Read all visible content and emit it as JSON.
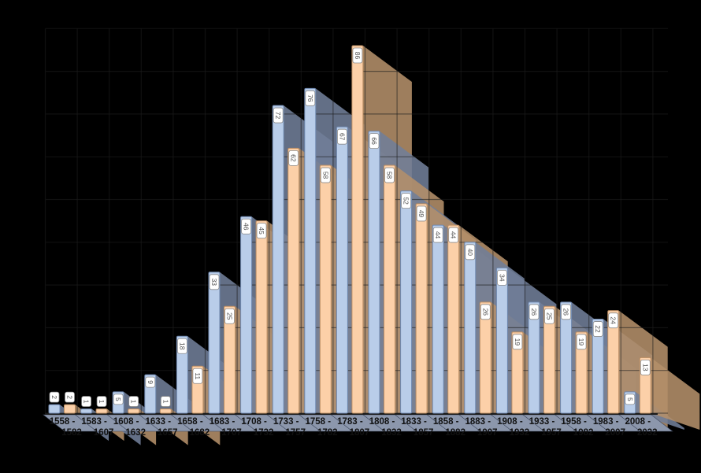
{
  "page": {
    "background": "#000000",
    "description": "3D paired bar chart, no title, no legend, value labels rotated 90 degrees on bar tops"
  },
  "chart_data": {
    "type": "bar",
    "style": "3d-extruded",
    "title": "",
    "xlabel": "",
    "ylabel": "",
    "legend": "none",
    "grid": "on",
    "ylim": [
      0,
      90
    ],
    "grid_step": 10,
    "categories": [
      "1558 - 1582",
      "1583 - 1607",
      "1608 - 1632",
      "1633 - 1657",
      "1658 - 1682",
      "1683 - 1707",
      "1708 - 1732",
      "1733 - 1757",
      "1758 - 1782",
      "1783 - 1807",
      "1808 - 1832",
      "1833 - 1857",
      "1858 - 1882",
      "1883 - 1907",
      "1908 - 1932",
      "1933 - 1957",
      "1958 - 1982",
      "1983 - 2007",
      "2008 - 2032"
    ],
    "series": [
      {
        "name": "blue-series",
        "color": "#b9cde9",
        "border_color": "#6e87ae",
        "shadow_color": "#717e99",
        "values": [
          2,
          1,
          5,
          9,
          18,
          33,
          46,
          72,
          76,
          67,
          66,
          52,
          44,
          40,
          34,
          26,
          26,
          22,
          5
        ]
      },
      {
        "name": "orange-series",
        "color": "#fcd0a8",
        "border_color": "#b98c62",
        "shadow_color": "#b4906a",
        "values": [
          2,
          1,
          1,
          1,
          11,
          25,
          45,
          62,
          58,
          86,
          58,
          49,
          44,
          26,
          19,
          25,
          19,
          24,
          13
        ]
      }
    ],
    "value_label_style": {
      "box_fill": "#ffffff",
      "box_border": "#8a8a8a",
      "text_color": "#4d4d4d",
      "rotation_deg": 90
    },
    "axis_style": {
      "floor_color": "#8c97ac",
      "floor_edge_color": "#3c465c",
      "gridline_color": "#1e1e1e",
      "baseline_color": "#1a1a1a",
      "x_label_color": "#111111"
    }
  }
}
